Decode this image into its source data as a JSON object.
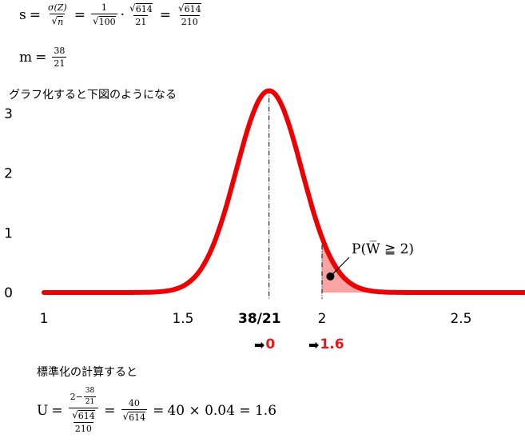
{
  "formula_s": {
    "lhs": "s",
    "eq1": "=",
    "f1_num": "σ(Z)",
    "f1_den": "n",
    "eq2": "=",
    "f2_num": "1",
    "f2_den": "100",
    "dot": "·",
    "f3_num": "614",
    "f3_den": "21",
    "eq3": "=",
    "f4_num": "614",
    "f4_den": "210"
  },
  "formula_m": {
    "lhs": "m",
    "eq": "=",
    "num": "38",
    "den": "21"
  },
  "caption_graph": "グラフ化すると下図のようになる",
  "annotation": "P(W̅ ≧ 2)",
  "marker_mean": "38/21",
  "arrow_tags": [
    {
      "arrow": "➡",
      "value": "0"
    },
    {
      "arrow": "➡",
      "value": "1.6"
    }
  ],
  "caption_standardize": "標準化の計算すると",
  "formula_u": {
    "lhs": "U",
    "eq1": "=",
    "inner_num_a": "2",
    "inner_num_minus": "−",
    "inner_num_b_num": "38",
    "inner_num_b_den": "21",
    "inner_den_num": "614",
    "inner_den_den": "210",
    "eq2": "=",
    "f2_num": "40",
    "f2_den": "614",
    "eq3": "=",
    "tail": "40 × 0.04 = 1.6"
  },
  "chart_data": {
    "type": "area",
    "title": "",
    "xlabel": "",
    "ylabel": "",
    "xlim": [
      1,
      2.73
    ],
    "ylim": [
      0,
      3.4
    ],
    "x_ticks": [
      1,
      1.5,
      2,
      2.5
    ],
    "x_tick_labels": [
      "1",
      "1.5",
      "2",
      "2.5"
    ],
    "y_ticks": [
      0,
      1,
      2,
      3
    ],
    "y_tick_labels": [
      "0",
      "1",
      "2",
      "3"
    ],
    "grid": false,
    "series": [
      {
        "distribution": "normal",
        "mean": 1.8095,
        "sd": 0.118,
        "peak": 3.38,
        "color": "#ee0000"
      }
    ],
    "shaded_region": {
      "from": 2,
      "to": 2.73,
      "color": "#f9a3a3"
    },
    "vlines": [
      {
        "x": 1.8095,
        "style": "dash-dot"
      },
      {
        "x": 2,
        "style": "dash-dot"
      }
    ],
    "marker_point": {
      "x": 2.03,
      "y": 0.27
    }
  }
}
